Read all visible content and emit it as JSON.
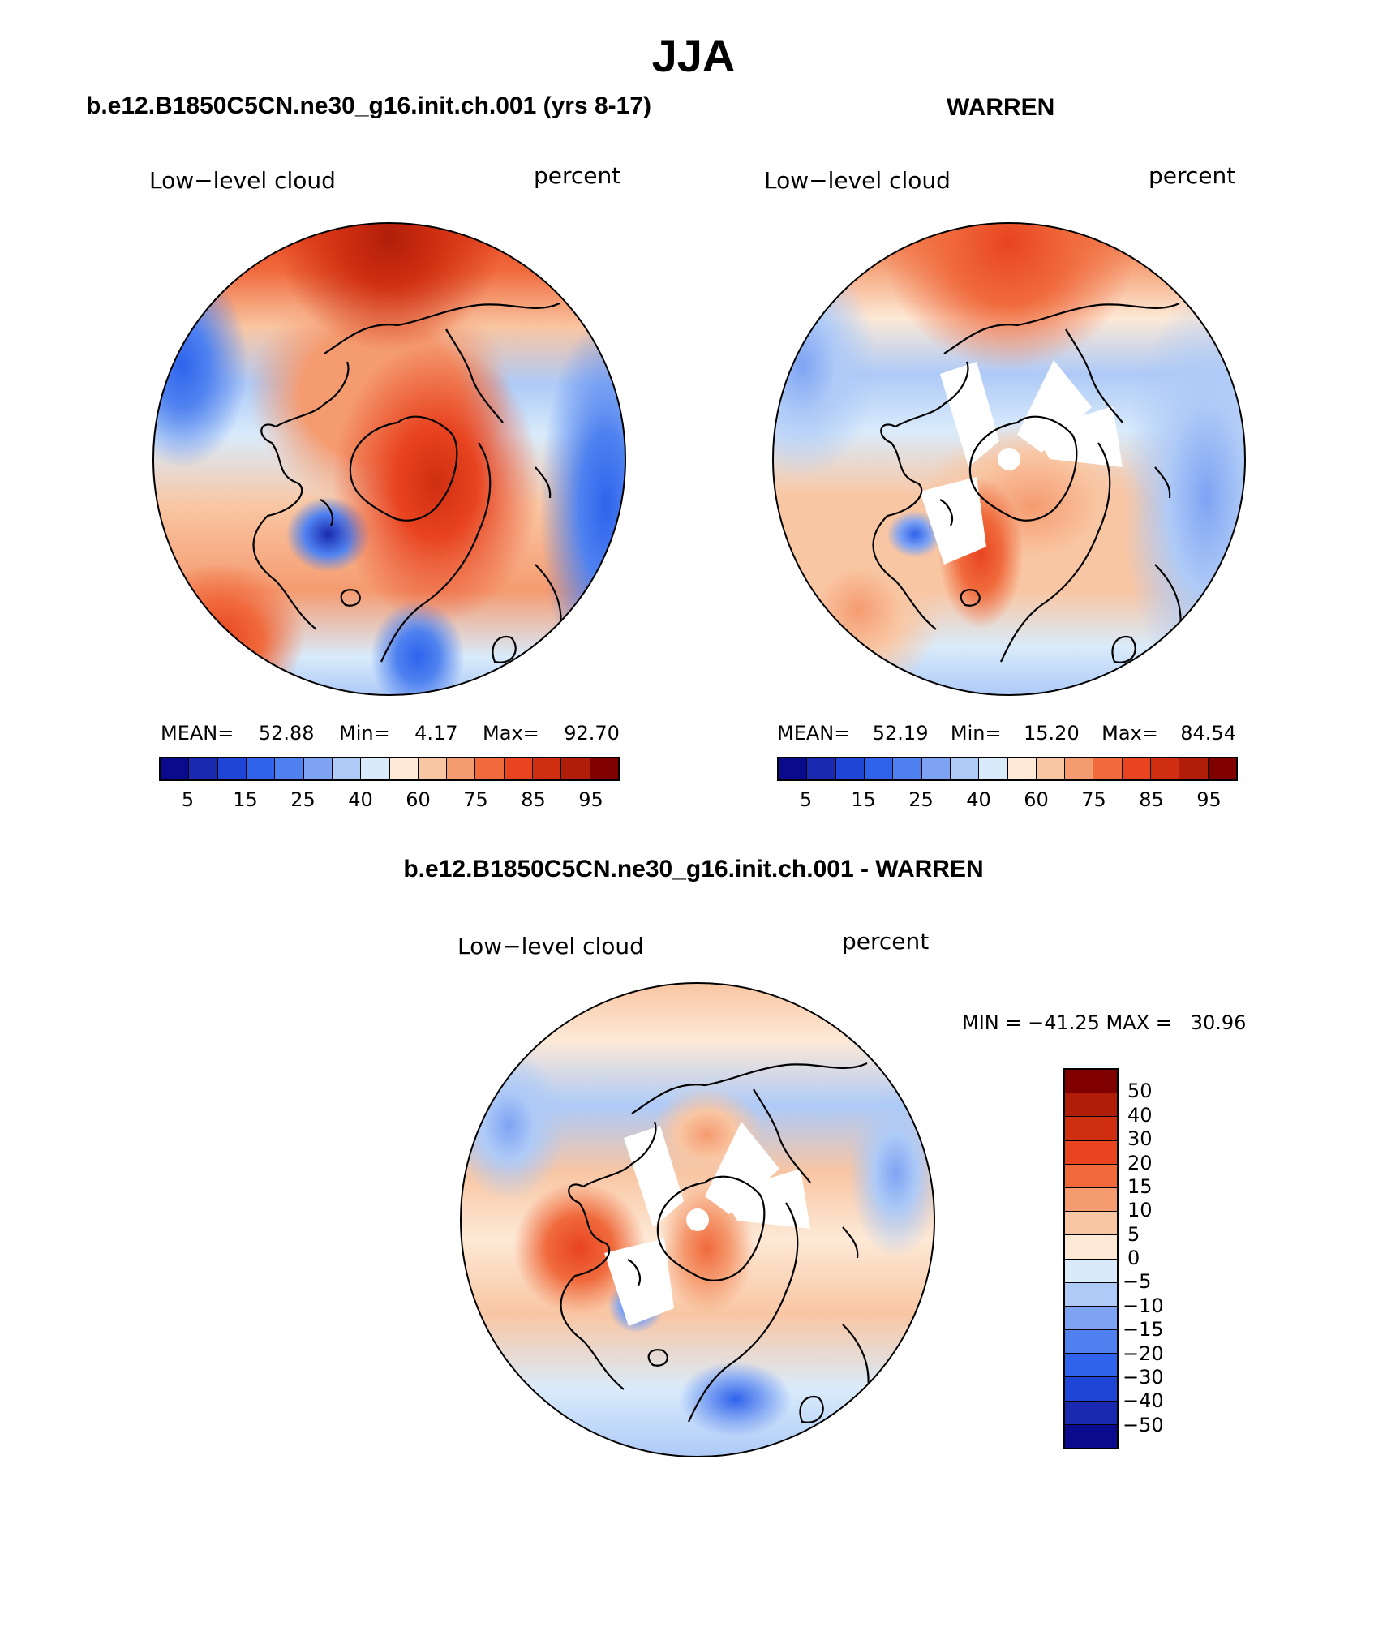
{
  "figure": {
    "title": "JJA",
    "panel_left_title": "b.e12.B1850C5CN.ne30_g16.init.ch.001 (yrs 8-17)",
    "panel_right_title": "WARREN",
    "panel_diff_title": "b.e12.B1850C5CN.ne30_g16.init.ch.001 - WARREN"
  },
  "panels": [
    {
      "id": "model",
      "variable_label": "Low−level cloud",
      "units_label": "percent",
      "mean_label": "MEAN=",
      "mean_value": "52.88",
      "min_label": "Min=",
      "min_value": "4.17",
      "max_label": "Max=",
      "max_value": "92.70"
    },
    {
      "id": "obs",
      "variable_label": "Low−level cloud",
      "units_label": "percent",
      "mean_label": "MEAN=",
      "mean_value": "52.19",
      "min_label": "Min=",
      "min_value": "15.20",
      "max_label": "Max=",
      "max_value": "84.54"
    },
    {
      "id": "difference",
      "variable_label": "Low−level cloud",
      "units_label": "percent",
      "minmax_text": "MIN = −41.25 MAX =   30.96"
    }
  ],
  "colorbar_abs": {
    "colors": [
      "#0a0a8c",
      "#1a2ab0",
      "#1f45d6",
      "#2f63ec",
      "#4f82f0",
      "#7ea3f3",
      "#aecaf7",
      "#d9ebfb",
      "#fde9d6",
      "#f9c6a3",
      "#f59b70",
      "#f06a3c",
      "#e84420",
      "#cf2e10",
      "#b01e0a",
      "#800000"
    ],
    "tick_labels": [
      "5",
      "15",
      "25",
      "40",
      "60",
      "75",
      "85",
      "95"
    ]
  },
  "colorbar_diff": {
    "colors": [
      "#800000",
      "#b01e0a",
      "#cf2e10",
      "#e84420",
      "#f06a3c",
      "#f59b70",
      "#f9c6a3",
      "#fde9d6",
      "#d9ebfb",
      "#aecaf7",
      "#7ea3f3",
      "#4f82f0",
      "#2f63ec",
      "#1f45d6",
      "#1a2ab0",
      "#0a0a8c"
    ],
    "tick_labels": [
      "50",
      "40",
      "30",
      "20",
      "15",
      "10",
      "5",
      "0",
      "−5",
      "−10",
      "−15",
      "−20",
      "−30",
      "−40",
      "−50"
    ]
  }
}
